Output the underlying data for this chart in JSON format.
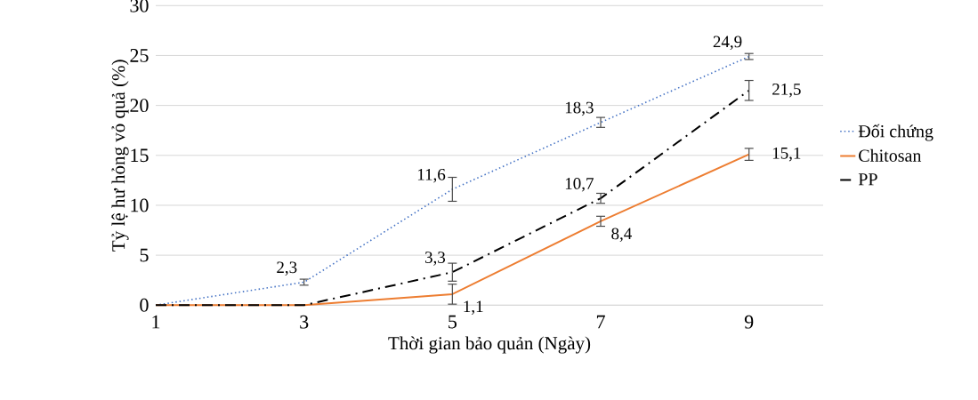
{
  "chart_data": {
    "type": "line",
    "xlabel": "Thời gian bảo quản (Ngày)",
    "ylabel": "Tỷ lệ hư hỏng vỏ quả (%)",
    "categories": [
      "1",
      "3",
      "5",
      "7",
      "9"
    ],
    "ylim": [
      0,
      30
    ],
    "yticks": [
      0,
      5,
      10,
      15,
      20,
      25,
      30
    ],
    "grid": "y",
    "legend": "right",
    "marker": "none",
    "series": [
      {
        "name": "Đối chứng",
        "color": "#4472c4",
        "line_style": "dotted",
        "values": [
          0,
          2.3,
          11.6,
          18.3,
          24.9
        ],
        "errors": [
          null,
          0.3,
          1.2,
          0.5,
          0.3
        ],
        "value_labels": [
          null,
          "2,3",
          "11,6",
          "18,3",
          "24,9"
        ]
      },
      {
        "name": "Chitosan",
        "color": "#ed7d31",
        "line_style": "solid",
        "values": [
          0,
          0,
          1.1,
          8.4,
          15.1
        ],
        "errors": [
          null,
          null,
          1.0,
          0.5,
          0.6
        ],
        "value_labels": [
          null,
          null,
          "1,1",
          "8,4",
          "15,1"
        ]
      },
      {
        "name": "PP",
        "color": "#000000",
        "line_style": "dashdot",
        "values": [
          0,
          0,
          3.3,
          10.7,
          21.5
        ],
        "errors": [
          null,
          null,
          0.9,
          0.5,
          1.0
        ],
        "value_labels": [
          null,
          null,
          "3,3",
          "10,7",
          "21,5"
        ]
      }
    ]
  }
}
